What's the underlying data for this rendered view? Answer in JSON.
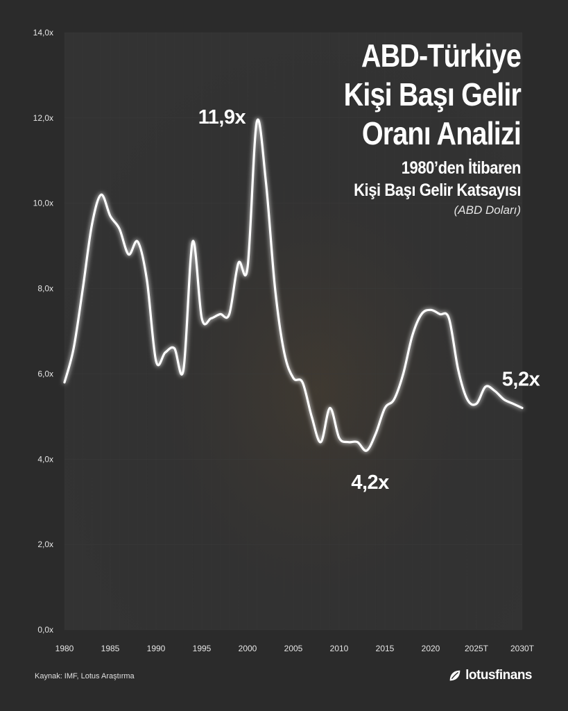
{
  "title": {
    "lines": [
      "ABD-Türkiye",
      "Kişi Başı Gelir",
      "Oranı Analizi"
    ],
    "subtitle_lines": [
      "1980’den İtibaren",
      "Kişi Başı Gelir Katsayısı"
    ],
    "unit": "(ABD Doları)"
  },
  "footer": {
    "source": "Kaynak:  IMF, Lotus Araştırma",
    "brand": "lotusfinans",
    "brand_icon": "lotus-leaf-icon"
  },
  "colors": {
    "background": "#2b2b2b",
    "line": "#ffffff",
    "grid": "#3a3a3a"
  },
  "chart_data": {
    "type": "line",
    "title": "ABD-Türkiye Kişi Başı Gelir Oranı Analizi",
    "subtitle": "1980’den İtibaren Kişi Başı Gelir Katsayısı",
    "xlabel": "",
    "ylabel": "",
    "ylim": [
      0,
      14
    ],
    "xlim": [
      1980,
      2030
    ],
    "grid": true,
    "x_ticks": [
      {
        "value": 1980,
        "label": "1980"
      },
      {
        "value": 1985,
        "label": "1985"
      },
      {
        "value": 1990,
        "label": "1990"
      },
      {
        "value": 1995,
        "label": "1995"
      },
      {
        "value": 2000,
        "label": "2000"
      },
      {
        "value": 2005,
        "label": "2005"
      },
      {
        "value": 2010,
        "label": "2010"
      },
      {
        "value": 2015,
        "label": "2015"
      },
      {
        "value": 2020,
        "label": "2020"
      },
      {
        "value": 2025,
        "label": "2025T"
      },
      {
        "value": 2030,
        "label": "2030T"
      }
    ],
    "y_ticks": [
      {
        "value": 0,
        "label": "0,0x"
      },
      {
        "value": 2,
        "label": "2,0x"
      },
      {
        "value": 4,
        "label": "4,0x"
      },
      {
        "value": 6,
        "label": "6,0x"
      },
      {
        "value": 8,
        "label": "8,0x"
      },
      {
        "value": 10,
        "label": "10,0x"
      },
      {
        "value": 12,
        "label": "12,0x"
      },
      {
        "value": 14,
        "label": "14,0x"
      }
    ],
    "series": [
      {
        "x": [
          1980,
          1981,
          1982,
          1983,
          1984,
          1985,
          1986,
          1987,
          1988,
          1989,
          1990,
          1991,
          1992,
          1993,
          1994,
          1995,
          1996,
          1997,
          1998,
          1999,
          2000,
          2001,
          2002,
          2003,
          2004,
          2005,
          2006,
          2007,
          2008,
          2009,
          2010,
          2011,
          2012,
          2013,
          2014,
          2015,
          2016,
          2017,
          2018,
          2019,
          2020,
          2021,
          2022,
          2023,
          2024,
          2025,
          2026,
          2027,
          2028,
          2029,
          2030
        ],
        "values": [
          5.8,
          6.6,
          8.0,
          9.5,
          10.2,
          9.7,
          9.4,
          8.8,
          9.1,
          8.2,
          6.3,
          6.5,
          6.6,
          6.1,
          9.1,
          7.3,
          7.3,
          7.4,
          7.4,
          8.6,
          8.5,
          11.9,
          10.5,
          8.0,
          6.5,
          5.9,
          5.8,
          5.0,
          4.4,
          5.2,
          4.5,
          4.4,
          4.4,
          4.2,
          4.6,
          5.2,
          5.4,
          6.0,
          6.9,
          7.4,
          7.5,
          7.4,
          7.3,
          6.1,
          5.4,
          5.3,
          5.7,
          5.6,
          5.4,
          5.3,
          5.2
        ]
      }
    ],
    "annotations": [
      {
        "x": 2001,
        "y": 11.9,
        "text": "11,9x",
        "position": "left"
      },
      {
        "x": 2013,
        "y": 4.2,
        "text": "4,2x",
        "position": "below"
      },
      {
        "x": 2030,
        "y": 5.2,
        "text": "5,2x",
        "position": "above"
      }
    ]
  }
}
